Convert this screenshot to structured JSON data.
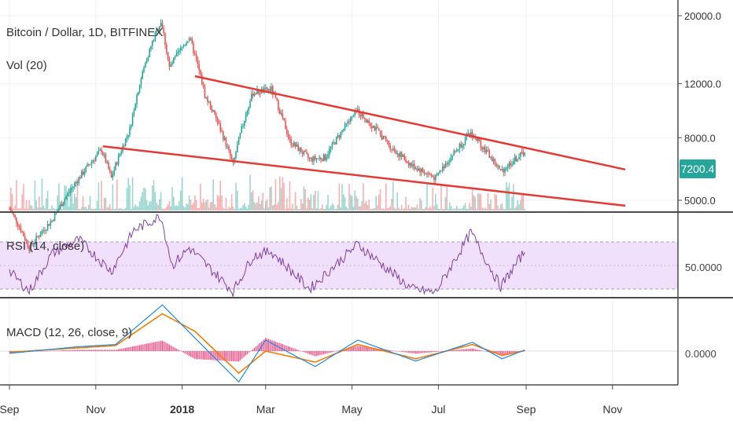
{
  "header": {
    "symbol_title": "Bitcoin / Dollar, 1D, BITFINEX",
    "volume_label": "Vol (20)"
  },
  "rsi": {
    "label": "RSI (14, close)",
    "axis_label": "50.0000",
    "upper": 70,
    "lower": 30
  },
  "macd": {
    "label": "MACD (12, 26, close, 9)",
    "axis_label": "0.0000"
  },
  "colors": {
    "up": "#26a69a",
    "down": "#ef5350",
    "trendline": "#e53935",
    "rsi_line": "#7e3fa0",
    "rsi_band": "#f1e0fb",
    "macd_line": "#1e88e5",
    "signal_line": "#f57c00",
    "hist": "#e91e63",
    "price_label_bg": "#26a69a"
  },
  "chart_data": {
    "type": "candlestick",
    "title": "Bitcoin / Dollar, 1D, BITFINEX",
    "price_scale": "log",
    "price_axis_ticks": [
      "20000.0",
      "12000.0",
      "8000.0",
      "5000.0"
    ],
    "last_price_label": "7200.4",
    "x_ticks": [
      "Sep",
      "Nov",
      "2018",
      "Mar",
      "May",
      "Jul",
      "Sep",
      "Nov"
    ],
    "x_tick_dates": [
      "2017-09-01",
      "2017-11-01",
      "2018-01-01",
      "2018-03-01",
      "2018-05-01",
      "2018-07-01",
      "2018-09-01",
      "2018-11-01"
    ],
    "price_path": [
      {
        "date": "2017-09-01",
        "price": 4700
      },
      {
        "date": "2017-09-15",
        "price": 3500
      },
      {
        "date": "2017-10-01",
        "price": 4300
      },
      {
        "date": "2017-10-20",
        "price": 5900
      },
      {
        "date": "2017-11-05",
        "price": 7300
      },
      {
        "date": "2017-11-12",
        "price": 5900
      },
      {
        "date": "2017-11-25",
        "price": 8500
      },
      {
        "date": "2017-12-07",
        "price": 14500
      },
      {
        "date": "2017-12-17",
        "price": 19200
      },
      {
        "date": "2017-12-23",
        "price": 13500
      },
      {
        "date": "2018-01-06",
        "price": 17000
      },
      {
        "date": "2018-01-17",
        "price": 11000
      },
      {
        "date": "2018-02-06",
        "price": 6500
      },
      {
        "date": "2018-02-20",
        "price": 11200
      },
      {
        "date": "2018-03-05",
        "price": 11500
      },
      {
        "date": "2018-03-18",
        "price": 7800
      },
      {
        "date": "2018-04-01",
        "price": 6800
      },
      {
        "date": "2018-04-12",
        "price": 6900
      },
      {
        "date": "2018-05-05",
        "price": 9800
      },
      {
        "date": "2018-05-29",
        "price": 7400
      },
      {
        "date": "2018-06-12",
        "price": 6500
      },
      {
        "date": "2018-06-29",
        "price": 5900
      },
      {
        "date": "2018-07-24",
        "price": 8300
      },
      {
        "date": "2018-08-14",
        "price": 6200
      },
      {
        "date": "2018-08-31",
        "price": 7200
      }
    ],
    "trendlines": [
      {
        "name": "upper",
        "start": {
          "date": "2018-01-10",
          "price": 12700
        },
        "end": {
          "date": "2018-11-10",
          "price": 6300
        }
      },
      {
        "name": "lower",
        "start": {
          "date": "2017-11-06",
          "price": 7500
        },
        "end": {
          "date": "2018-11-10",
          "price": 4800
        }
      }
    ],
    "rsi_path": [
      {
        "date": "2017-09-01",
        "value": 45
      },
      {
        "date": "2017-09-15",
        "value": 28
      },
      {
        "date": "2017-10-01",
        "value": 60
      },
      {
        "date": "2017-10-20",
        "value": 72
      },
      {
        "date": "2017-11-12",
        "value": 45
      },
      {
        "date": "2017-11-28",
        "value": 80
      },
      {
        "date": "2017-12-17",
        "value": 92
      },
      {
        "date": "2017-12-25",
        "value": 50
      },
      {
        "date": "2018-01-06",
        "value": 65
      },
      {
        "date": "2018-02-06",
        "value": 28
      },
      {
        "date": "2018-02-20",
        "value": 58
      },
      {
        "date": "2018-03-05",
        "value": 62
      },
      {
        "date": "2018-04-01",
        "value": 30
      },
      {
        "date": "2018-05-05",
        "value": 68
      },
      {
        "date": "2018-06-12",
        "value": 30
      },
      {
        "date": "2018-06-29",
        "value": 27
      },
      {
        "date": "2018-07-24",
        "value": 78
      },
      {
        "date": "2018-08-14",
        "value": 32
      },
      {
        "date": "2018-08-31",
        "value": 62
      }
    ],
    "macd_path": [
      {
        "date": "2017-09-01",
        "macd": -100,
        "signal": -50
      },
      {
        "date": "2017-10-20",
        "macd": 200,
        "signal": 150
      },
      {
        "date": "2017-11-15",
        "macd": 300,
        "signal": 250
      },
      {
        "date": "2017-12-18",
        "macd": 2100,
        "signal": 1700
      },
      {
        "date": "2018-01-10",
        "macd": 600,
        "signal": 900
      },
      {
        "date": "2018-02-10",
        "macd": -1400,
        "signal": -1000
      },
      {
        "date": "2018-03-01",
        "macd": 500,
        "signal": 0
      },
      {
        "date": "2018-04-05",
        "macd": -700,
        "signal": -500
      },
      {
        "date": "2018-05-05",
        "macd": 500,
        "signal": 300
      },
      {
        "date": "2018-06-15",
        "macd": -450,
        "signal": -350
      },
      {
        "date": "2018-07-25",
        "macd": 400,
        "signal": 300
      },
      {
        "date": "2018-08-15",
        "macd": -350,
        "signal": -200
      },
      {
        "date": "2018-08-31",
        "macd": 50,
        "signal": 20
      }
    ]
  }
}
